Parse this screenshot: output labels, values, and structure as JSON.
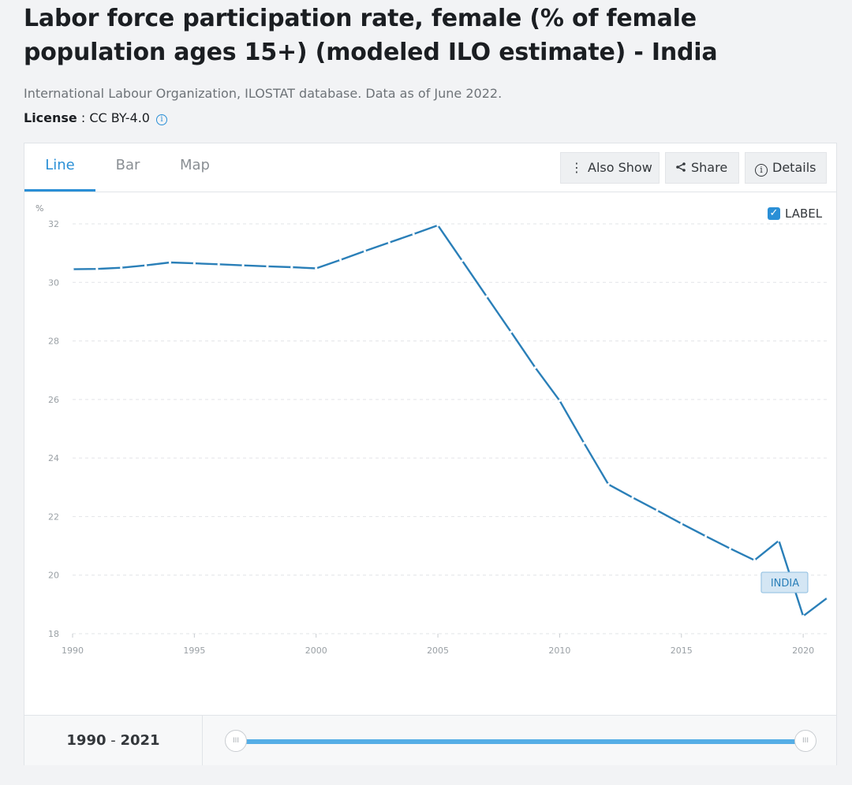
{
  "page": {
    "title": "Labor force participation rate, female (% of female population ages 15+) (modeled ILO estimate) - India",
    "source": "International Labour Organization, ILOSTAT database. Data as of June 2022.",
    "license_label": "License",
    "license_sep": " : ",
    "license_value": "CC BY-4.0"
  },
  "tabs": [
    {
      "label": "Line",
      "active": true
    },
    {
      "label": "Bar",
      "active": false
    },
    {
      "label": "Map",
      "active": false
    }
  ],
  "toolbar": {
    "also_show": "Also Show",
    "share": "Share",
    "details": "Details"
  },
  "label_toggle": {
    "label": "LABEL",
    "checked": true
  },
  "colors": {
    "series": "#2a7fb8",
    "accent": "#2a8fd6"
  },
  "chart_data": {
    "type": "line",
    "title": "",
    "ylabel": "%",
    "xlabel": "",
    "ylim": [
      18,
      32
    ],
    "xlim": [
      1990,
      2021
    ],
    "yticks": [
      18,
      20,
      22,
      24,
      26,
      28,
      30,
      32
    ],
    "xticks": [
      1990,
      1995,
      2000,
      2005,
      2010,
      2015,
      2020
    ],
    "grid": true,
    "series": [
      {
        "name": "INDIA",
        "x": [
          1990,
          1991,
          1992,
          1993,
          1994,
          1995,
          1996,
          1997,
          1998,
          1999,
          2000,
          2001,
          2002,
          2003,
          2004,
          2005,
          2006,
          2007,
          2008,
          2009,
          2010,
          2011,
          2012,
          2013,
          2014,
          2015,
          2016,
          2017,
          2018,
          2019,
          2020,
          2021
        ],
        "values": [
          30.45,
          30.46,
          30.5,
          30.58,
          30.68,
          30.65,
          30.62,
          30.58,
          30.55,
          30.52,
          30.48,
          30.77,
          31.07,
          31.36,
          31.65,
          31.95,
          30.74,
          29.52,
          28.31,
          27.09,
          25.96,
          24.51,
          23.1,
          22.65,
          22.21,
          21.76,
          21.33,
          20.91,
          20.51,
          21.18,
          18.6,
          19.23
        ]
      }
    ],
    "data_label": "INDIA"
  },
  "range": {
    "start": "1990",
    "end": "2021",
    "separator": " - ",
    "handle_glyph": "III"
  }
}
